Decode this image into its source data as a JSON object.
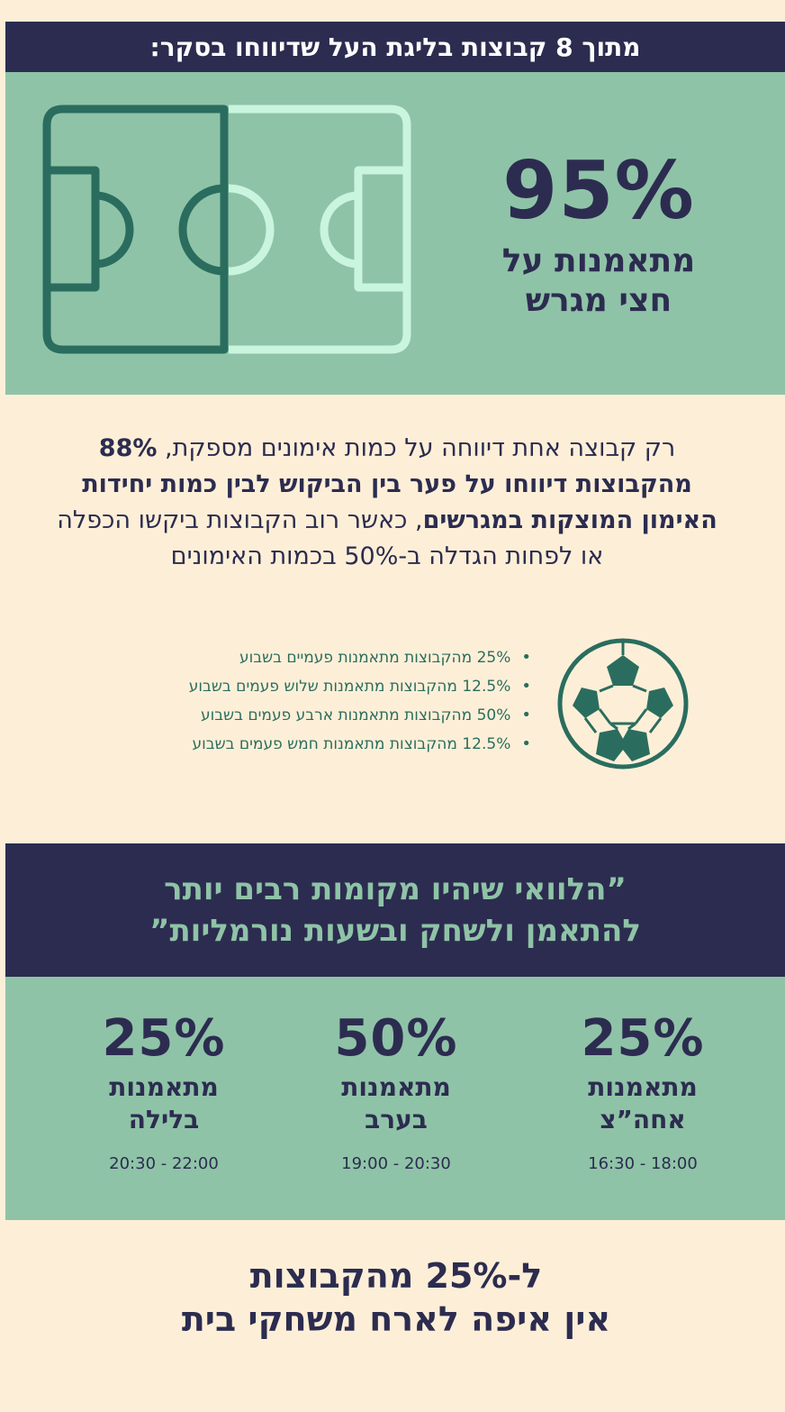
{
  "header": {
    "title": "מתוך 8 קבוצות בליגת העל שדיווחו בסקר:"
  },
  "field_stat": {
    "value": "95%",
    "caption_line1": "מתאמנות על",
    "caption_line2": "חצי מגרש"
  },
  "paragraph": {
    "part1": "רק קבוצה אחת דיווחה על כמות אימונים מספקת, ",
    "bold": "88% מהקבוצות דיווחו על פער בין הביקוש לבין כמות יחידות האימון המוצקות במגרשים",
    "part2": ", כאשר רוב הקבוצות ביקשו הכפלה או לפחות הגדלה ב-50% בכמות האימונים"
  },
  "frequency": [
    "25% מהקבוצות מתאמנות פעמיים בשבוע",
    "12.5% מהקבוצות מתאמנות שלוש פעמים בשבוע",
    "50% מהקבוצות מתאמנות ארבע פעמים בשבוע",
    "12.5% מהקבוצות מתאמנות חמש פעמים בשבוע"
  ],
  "quote": {
    "line1": "”הלוואי שיהיו מקומות רבים יותר",
    "line2": "להתאמן ולשחק ובשעות נורמליות”"
  },
  "time_slots": [
    {
      "value": "25%",
      "line1": "מתאמנות",
      "line2": "אחה”צ",
      "hours": "16:30 - 18:00"
    },
    {
      "value": "50%",
      "line1": "מתאמנות",
      "line2": "בערב",
      "hours": "19:00 - 20:30"
    },
    {
      "value": "25%",
      "line1": "מתאמנות",
      "line2": "בלילה",
      "hours": "20:30 - 22:00"
    }
  ],
  "final": {
    "line1": "ל-25% מהקבוצות",
    "line2": "אין איפה לארח משחקי בית"
  },
  "colors": {
    "navy": "#2c2c50",
    "mint": "#8fc3a7",
    "cream": "#fdefd7",
    "dark_green": "#2a6d5f",
    "light_mint": "#c9f5df"
  },
  "icons": {
    "pitch": "soccer-pitch-icon",
    "ball": "soccer-ball-icon"
  }
}
